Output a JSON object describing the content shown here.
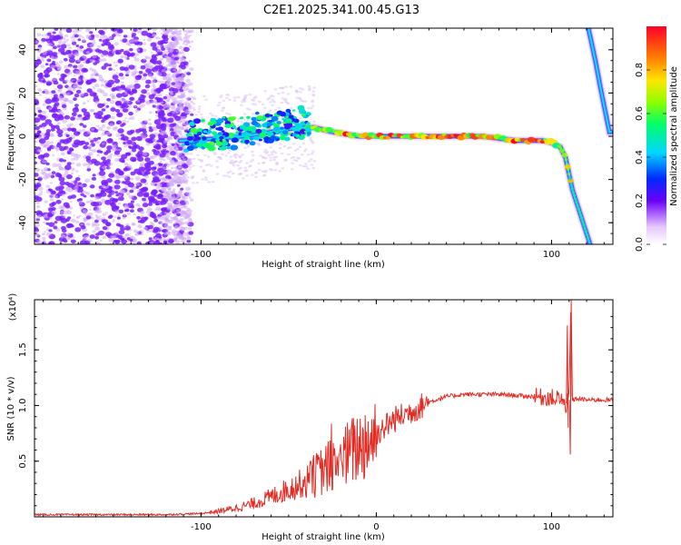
{
  "figure": {
    "title": "C2E1.2025.341.00.45.G13"
  },
  "chart_data": [
    {
      "type": "heatmap",
      "name": "spectrogram",
      "xlabel": "Height of straight line (km)",
      "ylabel": "Frequency (Hz)",
      "xlim": [
        -195,
        135
      ],
      "ylim": [
        -50,
        50
      ],
      "x_ticks": [
        -100,
        0,
        100
      ],
      "x_tick_labels": [
        "-100",
        "0",
        "100"
      ],
      "y_ticks": [
        -40,
        -20,
        0,
        20,
        40
      ],
      "y_tick_labels": [
        "-40",
        "-20",
        "0",
        "20",
        "40"
      ],
      "colorbar": {
        "label": "Normalized spectral amplitude",
        "range": [
          0,
          1
        ],
        "ticks": [
          0.0,
          0.2,
          0.4,
          0.6,
          0.8
        ],
        "tick_labels": [
          "0.0",
          "0.2",
          "0.4",
          "0.6",
          "0.8"
        ]
      },
      "ridge": {
        "x": [
          -110,
          -90,
          -75,
          -60,
          -45,
          -35,
          -25,
          -10,
          0,
          20,
          40,
          60,
          80,
          95,
          100,
          105,
          108,
          112,
          118,
          122
        ],
        "y": [
          -2,
          -1,
          0,
          2,
          4,
          4,
          2,
          0,
          0,
          0,
          0,
          0,
          -2,
          -2,
          -3,
          -5,
          -10,
          -25,
          -40,
          -50
        ]
      },
      "secondary_ridge": {
        "x": [
          121,
          125,
          128,
          131,
          133
        ],
        "y": [
          50,
          35,
          22,
          10,
          2
        ]
      }
    },
    {
      "type": "line",
      "name": "snr",
      "xlabel": "Height of straight line (km)",
      "ylabel": "SNR (10 * v/v)",
      "y_scale_label": "(x10⁴)",
      "xlim": [
        -195,
        135
      ],
      "ylim": [
        0,
        1.95
      ],
      "x_ticks": [
        -100,
        0,
        100
      ],
      "x_tick_labels": [
        "-100",
        "0",
        "100"
      ],
      "y_ticks": [
        0.5,
        1.0,
        1.5
      ],
      "y_tick_labels": [
        "0.5",
        "1.0",
        "1.5"
      ],
      "series": [
        {
          "name": "SNR",
          "color": "#e32b24",
          "x": [
            -195,
            -150,
            -120,
            -100,
            -90,
            -80,
            -70,
            -60,
            -50,
            -40,
            -30,
            -20,
            -10,
            0,
            10,
            20,
            30,
            40,
            50,
            60,
            70,
            80,
            90,
            100,
            105,
            108,
            110,
            111,
            112,
            115,
            120,
            130,
            135
          ],
          "y": [
            0.02,
            0.02,
            0.02,
            0.03,
            0.05,
            0.08,
            0.12,
            0.18,
            0.25,
            0.32,
            0.42,
            0.52,
            0.63,
            0.75,
            0.87,
            0.95,
            1.03,
            1.08,
            1.1,
            1.1,
            1.1,
            1.09,
            1.08,
            1.07,
            1.06,
            1.0,
            1.05,
            1.9,
            1.05,
            1.06,
            1.05,
            1.05,
            1.05
          ]
        }
      ]
    }
  ]
}
